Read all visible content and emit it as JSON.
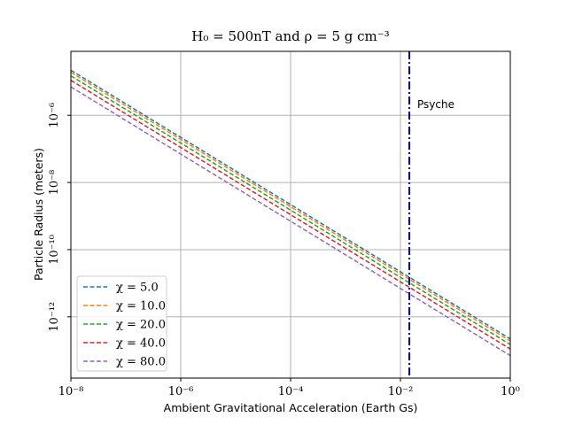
{
  "chart_data": {
    "type": "line",
    "title": "H₀ = 500nT and ρ = 5 g cm⁻³",
    "xlabel": "Ambient Gravitational Acceleration (Earth Gs)",
    "ylabel": "Particle Radius (meters)",
    "x_scale": "log",
    "y_scale": "log",
    "xlim": [
      1e-08,
      1
    ],
    "ylim": [
      1.5e-14,
      8e-05
    ],
    "grid": true,
    "legend_position": "lower-left",
    "x_ticks": [
      {
        "value": 1e-08,
        "label": "10⁻⁸"
      },
      {
        "value": 1e-06,
        "label": "10⁻⁶"
      },
      {
        "value": 0.0001,
        "label": "10⁻⁴"
      },
      {
        "value": 0.01,
        "label": "10⁻²"
      },
      {
        "value": 1,
        "label": "10⁰"
      }
    ],
    "y_ticks": [
      {
        "value": 1e-06,
        "label": "10⁻⁶"
      },
      {
        "value": 1e-08,
        "label": "10⁻⁸"
      },
      {
        "value": 1e-10,
        "label": "10⁻¹⁰"
      },
      {
        "value": 1e-12,
        "label": "10⁻¹²"
      }
    ],
    "series": [
      {
        "name": "χ = 5.0",
        "color": "#1f77b4",
        "x": [
          1e-08,
          1
        ],
        "y": [
          2.2e-05,
          2.2e-13
        ]
      },
      {
        "name": "χ = 10.0",
        "color": "#ff7f0e",
        "x": [
          1e-08,
          1
        ],
        "y": [
          1.9e-05,
          1.9e-13
        ]
      },
      {
        "name": "χ = 20.0",
        "color": "#2ca02c",
        "x": [
          1e-08,
          1
        ],
        "y": [
          1.5e-05,
          1.5e-13
        ]
      },
      {
        "name": "χ = 40.0",
        "color": "#d62728",
        "x": [
          1e-08,
          1
        ],
        "y": [
          1.1e-05,
          1.1e-13
        ]
      },
      {
        "name": "χ = 80.0",
        "color": "#9467bd",
        "x": [
          1e-08,
          1
        ],
        "y": [
          7e-06,
          7e-14
        ]
      }
    ],
    "annotations": [
      {
        "type": "vline",
        "x": 0.0145,
        "color": "#0000cc",
        "style": "dash-dot",
        "label": "Psyche"
      }
    ]
  }
}
